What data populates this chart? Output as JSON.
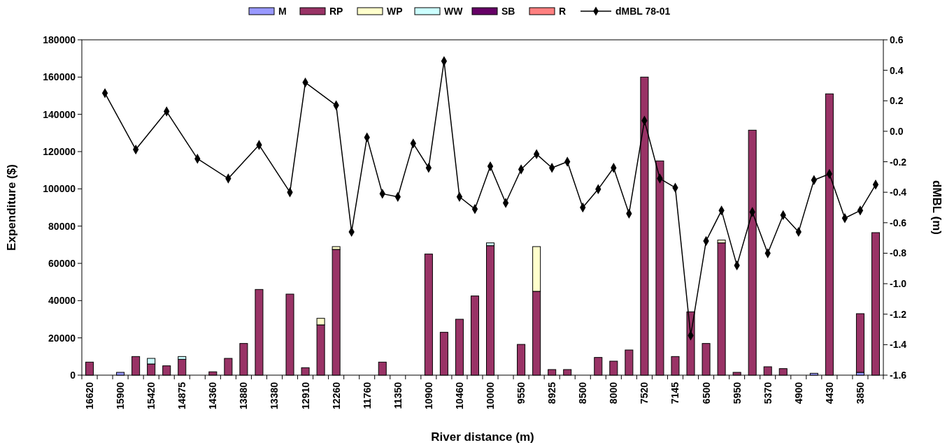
{
  "chart_data": {
    "type": "bar",
    "stacked": true,
    "xlabel": "River distance (m)",
    "ylabel": "Expenditure ($)",
    "y2label": "dMBL (m)",
    "legend": "top",
    "grid": false,
    "categories": [
      "16620",
      null,
      "15900",
      null,
      "15420",
      null,
      "14875",
      null,
      "14360",
      null,
      "13880",
      null,
      "13380",
      null,
      "12910",
      null,
      "12260",
      null,
      "11760",
      null,
      "11350",
      null,
      "10900",
      null,
      "10460",
      null,
      "10000",
      null,
      "9550",
      null,
      "8925",
      null,
      "8500",
      null,
      "8000",
      null,
      "7520",
      null,
      "7145",
      null,
      "6500",
      null,
      "5950",
      null,
      "5370",
      null,
      "4900",
      null,
      "4430",
      null,
      "3850",
      null
    ],
    "ylim": [
      0,
      180000
    ],
    "yticks": [
      0,
      20000,
      40000,
      60000,
      80000,
      100000,
      120000,
      140000,
      160000,
      180000
    ],
    "y2lim": [
      -1.6,
      0.6
    ],
    "y2ticks": [
      -1.6,
      -1.4,
      -1.2,
      {
        "value": -1,
        "label": "-1.0"
      },
      -0.8,
      -0.6,
      -0.4,
      -0.2,
      {
        "value": 0,
        "label": "0.0"
      },
      0.2,
      0.4,
      0.6
    ],
    "series": [
      {
        "name": "M",
        "color": "#9999ff",
        "values": [
          null,
          null,
          1500,
          null,
          null,
          null,
          null,
          null,
          null,
          null,
          null,
          null,
          null,
          null,
          null,
          null,
          null,
          null,
          null,
          null,
          null,
          null,
          null,
          null,
          null,
          null,
          null,
          null,
          null,
          null,
          null,
          null,
          null,
          null,
          null,
          null,
          null,
          null,
          null,
          null,
          null,
          null,
          null,
          null,
          null,
          null,
          null,
          1000,
          null,
          null,
          1500,
          null
        ]
      },
      {
        "name": "RP",
        "color": "#993366",
        "values": [
          7000,
          null,
          null,
          10000,
          6000,
          5000,
          8500,
          null,
          1800,
          9000,
          17000,
          46000,
          null,
          43500,
          4000,
          27000,
          67500,
          null,
          null,
          7000,
          null,
          null,
          65000,
          23000,
          30000,
          42500,
          69500,
          null,
          16500,
          45000,
          3000,
          3000,
          null,
          9500,
          7500,
          13500,
          160000,
          115000,
          10000,
          34000,
          17000,
          71000,
          1500,
          131500,
          4500,
          3500,
          null,
          null,
          151000,
          null,
          31500,
          76500
        ]
      },
      {
        "name": "WP",
        "color": "#ffffcc",
        "values": [
          null,
          null,
          null,
          null,
          null,
          null,
          null,
          null,
          null,
          null,
          null,
          null,
          null,
          null,
          null,
          3500,
          1500,
          null,
          null,
          null,
          null,
          null,
          null,
          null,
          null,
          null,
          null,
          null,
          null,
          24000,
          null,
          null,
          null,
          null,
          null,
          null,
          null,
          null,
          null,
          null,
          null,
          1500,
          null,
          null,
          null,
          null,
          null,
          null,
          null,
          null,
          null,
          null
        ]
      },
      {
        "name": "WW",
        "color": "#ccffff",
        "values": [
          null,
          null,
          null,
          null,
          3000,
          null,
          1500,
          null,
          null,
          null,
          null,
          null,
          null,
          null,
          null,
          null,
          null,
          null,
          null,
          null,
          null,
          null,
          null,
          null,
          null,
          null,
          1500,
          null,
          null,
          null,
          null,
          null,
          null,
          null,
          null,
          null,
          null,
          null,
          null,
          null,
          null,
          null,
          null,
          null,
          null,
          null,
          null,
          null,
          null,
          null,
          null,
          null
        ]
      },
      {
        "name": "SB",
        "color": "#660066",
        "values": [
          null,
          null,
          null,
          null,
          null,
          null,
          null,
          null,
          null,
          null,
          null,
          null,
          null,
          null,
          null,
          null,
          null,
          null,
          null,
          null,
          null,
          null,
          null,
          null,
          null,
          null,
          null,
          null,
          null,
          null,
          null,
          null,
          null,
          null,
          null,
          null,
          null,
          null,
          null,
          null,
          null,
          null,
          null,
          null,
          null,
          null,
          null,
          null,
          null,
          null,
          null,
          null
        ]
      },
      {
        "name": "R",
        "color": "#ff8080",
        "values": [
          null,
          null,
          null,
          null,
          null,
          null,
          null,
          null,
          null,
          null,
          null,
          null,
          null,
          null,
          null,
          null,
          null,
          null,
          null,
          null,
          null,
          null,
          null,
          null,
          null,
          null,
          null,
          null,
          null,
          null,
          null,
          null,
          null,
          null,
          null,
          null,
          null,
          null,
          null,
          null,
          null,
          null,
          null,
          null,
          null,
          null,
          null,
          null,
          null,
          null,
          null,
          null
        ]
      },
      {
        "name": "dMBL 78-01",
        "type": "line",
        "axis": "y2",
        "color": "#000000",
        "marker": "diamond",
        "values": [
          null,
          0.25,
          null,
          -0.12,
          null,
          0.13,
          null,
          -0.18,
          null,
          -0.31,
          null,
          -0.09,
          null,
          -0.4,
          0.32,
          null,
          0.17,
          -0.66,
          -0.04,
          -0.41,
          -0.43,
          -0.08,
          -0.24,
          0.46,
          -0.43,
          -0.51,
          -0.23,
          -0.47,
          -0.25,
          -0.15,
          -0.24,
          -0.2,
          -0.5,
          -0.38,
          -0.24,
          -0.54,
          0.07,
          -0.31,
          -0.37,
          -1.34,
          -0.72,
          -0.52,
          -0.88,
          -0.53,
          -0.8,
          -0.55,
          -0.66,
          -0.32,
          -0.28,
          -0.57,
          -0.52,
          -0.35
        ]
      }
    ]
  }
}
